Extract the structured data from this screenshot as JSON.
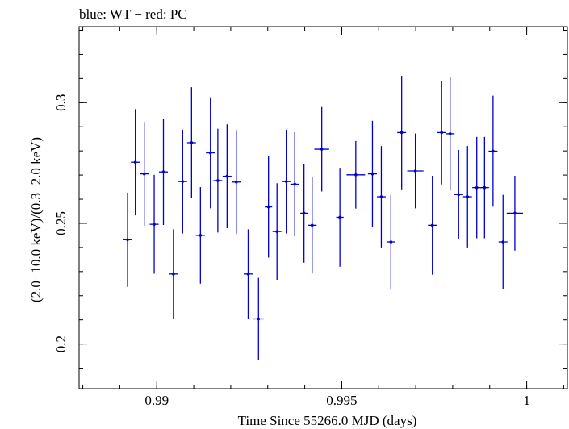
{
  "chart_data": {
    "type": "scatter",
    "title": "blue: WT − red: PC",
    "xlabel": "Time Since 55266.0 MJD (days)",
    "ylabel": "(2.0−10.0 keV)/(0.3−2.0 keV)",
    "xlim": [
      0.9879,
      1.0011
    ],
    "ylim": [
      0.1815,
      0.3315
    ],
    "x_ticks": [
      {
        "value": 0.99,
        "label": "0.99"
      },
      {
        "value": 0.995,
        "label": "0.995"
      },
      {
        "value": 1.0,
        "label": "1"
      }
    ],
    "y_ticks": [
      {
        "value": 0.2,
        "label": "0.2"
      },
      {
        "value": 0.25,
        "label": "0.25"
      },
      {
        "value": 0.3,
        "label": "0.3"
      }
    ],
    "grid": false,
    "series": [
      {
        "color": "#0000cc",
        "points": [
          {
            "x": 0.98921,
            "xerr": 0.00012,
            "y": 0.2432,
            "yerr": 0.0195
          },
          {
            "x": 0.98942,
            "xerr": 0.00012,
            "y": 0.2753,
            "yerr": 0.022
          },
          {
            "x": 0.98966,
            "xerr": 0.00012,
            "y": 0.2705,
            "yerr": 0.0215
          },
          {
            "x": 0.98993,
            "xerr": 0.00012,
            "y": 0.2496,
            "yerr": 0.0205
          },
          {
            "x": 0.99018,
            "xerr": 0.00012,
            "y": 0.2713,
            "yerr": 0.022
          },
          {
            "x": 0.99045,
            "xerr": 0.00012,
            "y": 0.229,
            "yerr": 0.0185
          },
          {
            "x": 0.9907,
            "xerr": 0.00012,
            "y": 0.2673,
            "yerr": 0.0215
          },
          {
            "x": 0.99094,
            "xerr": 0.00012,
            "y": 0.2834,
            "yerr": 0.023
          },
          {
            "x": 0.99118,
            "xerr": 0.00012,
            "y": 0.245,
            "yerr": 0.02
          },
          {
            "x": 0.99145,
            "xerr": 0.00012,
            "y": 0.2792,
            "yerr": 0.023
          },
          {
            "x": 0.99165,
            "xerr": 0.00012,
            "y": 0.2677,
            "yerr": 0.0215
          },
          {
            "x": 0.9919,
            "xerr": 0.00012,
            "y": 0.2695,
            "yerr": 0.0215
          },
          {
            "x": 0.99215,
            "xerr": 0.00012,
            "y": 0.2671,
            "yerr": 0.0215
          },
          {
            "x": 0.99247,
            "xerr": 0.00012,
            "y": 0.229,
            "yerr": 0.0185
          },
          {
            "x": 0.99275,
            "xerr": 0.00014,
            "y": 0.2104,
            "yerr": 0.017
          },
          {
            "x": 0.99302,
            "xerr": 0.0001,
            "y": 0.2568,
            "yerr": 0.021
          },
          {
            "x": 0.99325,
            "xerr": 0.00012,
            "y": 0.2466,
            "yerr": 0.02
          },
          {
            "x": 0.9935,
            "xerr": 0.00012,
            "y": 0.2673,
            "yerr": 0.0215
          },
          {
            "x": 0.99373,
            "xerr": 0.00012,
            "y": 0.2662,
            "yerr": 0.0215
          },
          {
            "x": 0.99398,
            "xerr": 0.0001,
            "y": 0.2542,
            "yerr": 0.0205
          },
          {
            "x": 0.9942,
            "xerr": 0.00012,
            "y": 0.2492,
            "yerr": 0.02
          },
          {
            "x": 0.99446,
            "xerr": 0.0002,
            "y": 0.2807,
            "yerr": 0.0175
          },
          {
            "x": 0.99495,
            "xerr": 0.0001,
            "y": 0.2525,
            "yerr": 0.0205
          },
          {
            "x": 0.99538,
            "xerr": 0.00025,
            "y": 0.2701,
            "yerr": 0.014
          },
          {
            "x": 0.99583,
            "xerr": 0.00012,
            "y": 0.2705,
            "yerr": 0.022
          },
          {
            "x": 0.99607,
            "xerr": 0.00012,
            "y": 0.261,
            "yerr": 0.021
          },
          {
            "x": 0.99633,
            "xerr": 0.00012,
            "y": 0.2423,
            "yerr": 0.0195
          },
          {
            "x": 0.99662,
            "xerr": 0.00012,
            "y": 0.2876,
            "yerr": 0.0235
          },
          {
            "x": 0.99699,
            "xerr": 0.00022,
            "y": 0.2717,
            "yerr": 0.0155
          },
          {
            "x": 0.99745,
            "xerr": 0.00012,
            "y": 0.2492,
            "yerr": 0.0205
          },
          {
            "x": 0.9977,
            "xerr": 0.00012,
            "y": 0.2876,
            "yerr": 0.0215
          },
          {
            "x": 0.99793,
            "xerr": 0.00012,
            "y": 0.2871,
            "yerr": 0.0235
          },
          {
            "x": 0.99816,
            "xerr": 0.00012,
            "y": 0.2619,
            "yerr": 0.0185
          },
          {
            "x": 0.9984,
            "xerr": 0.00012,
            "y": 0.261,
            "yerr": 0.021
          },
          {
            "x": 0.99865,
            "xerr": 0.00012,
            "y": 0.2648,
            "yerr": 0.021
          },
          {
            "x": 0.99886,
            "xerr": 0.00012,
            "y": 0.2648,
            "yerr": 0.021
          },
          {
            "x": 0.99909,
            "xerr": 0.00012,
            "y": 0.2799,
            "yerr": 0.023
          },
          {
            "x": 0.99936,
            "xerr": 0.00012,
            "y": 0.2423,
            "yerr": 0.0195
          },
          {
            "x": 0.99968,
            "xerr": 0.00022,
            "y": 0.2542,
            "yerr": 0.0155
          }
        ]
      }
    ]
  }
}
